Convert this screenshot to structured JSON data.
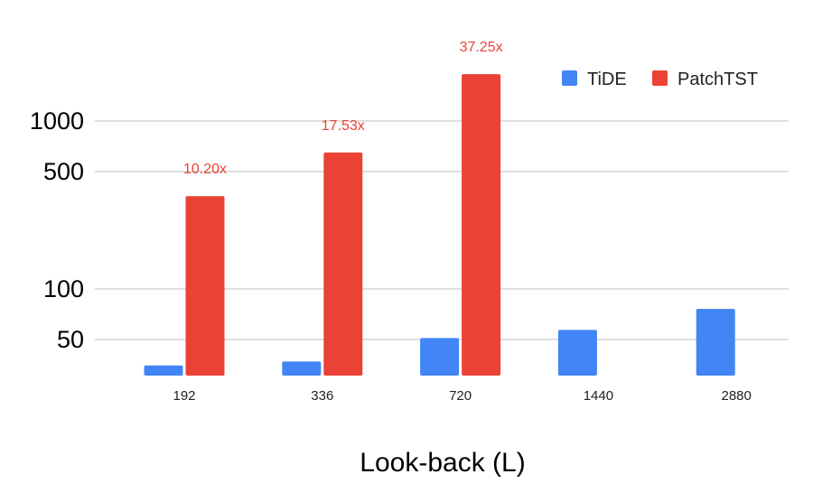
{
  "chart_data": {
    "type": "bar",
    "scale": "log",
    "categories": [
      "192",
      "336",
      "720",
      "1440",
      "2880"
    ],
    "series": [
      {
        "name": "TiDE",
        "color": "#4285f4",
        "values": [
          35,
          37,
          51,
          57,
          76
        ]
      },
      {
        "name": "PatchTST",
        "color": "#ea4335",
        "values": [
          357,
          649,
          1900,
          null,
          null
        ]
      }
    ],
    "annotations": [
      {
        "category": "192",
        "series": "PatchTST",
        "text": "10.20x"
      },
      {
        "category": "336",
        "series": "PatchTST",
        "text": "17.53x"
      },
      {
        "category": "720",
        "series": "PatchTST",
        "text": "37.25x"
      }
    ],
    "annotation_color": "#ea4335",
    "yticks": [
      50,
      100,
      500,
      1000
    ],
    "ytick_labels": [
      "50",
      "100",
      "500",
      "1000"
    ],
    "ylim": [
      30,
      2500
    ],
    "xlabel": "Look-back (L)",
    "ylabel": "",
    "title": "",
    "grid": true,
    "legend_position": "top-right"
  }
}
